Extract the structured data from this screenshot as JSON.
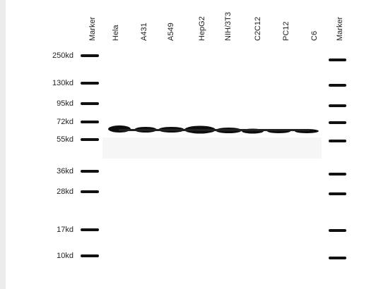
{
  "lanes": [
    "Marker",
    "Hela",
    "A431",
    "A549",
    "HepG2",
    "NIH/3T3",
    "C2C12",
    "PC12",
    "C6",
    "Marker"
  ],
  "marker_labels": [
    "250kd",
    "130kd",
    "95kd",
    "72kd",
    "55kd",
    "36kd",
    "28kd",
    "17kd",
    "10kd"
  ]
}
